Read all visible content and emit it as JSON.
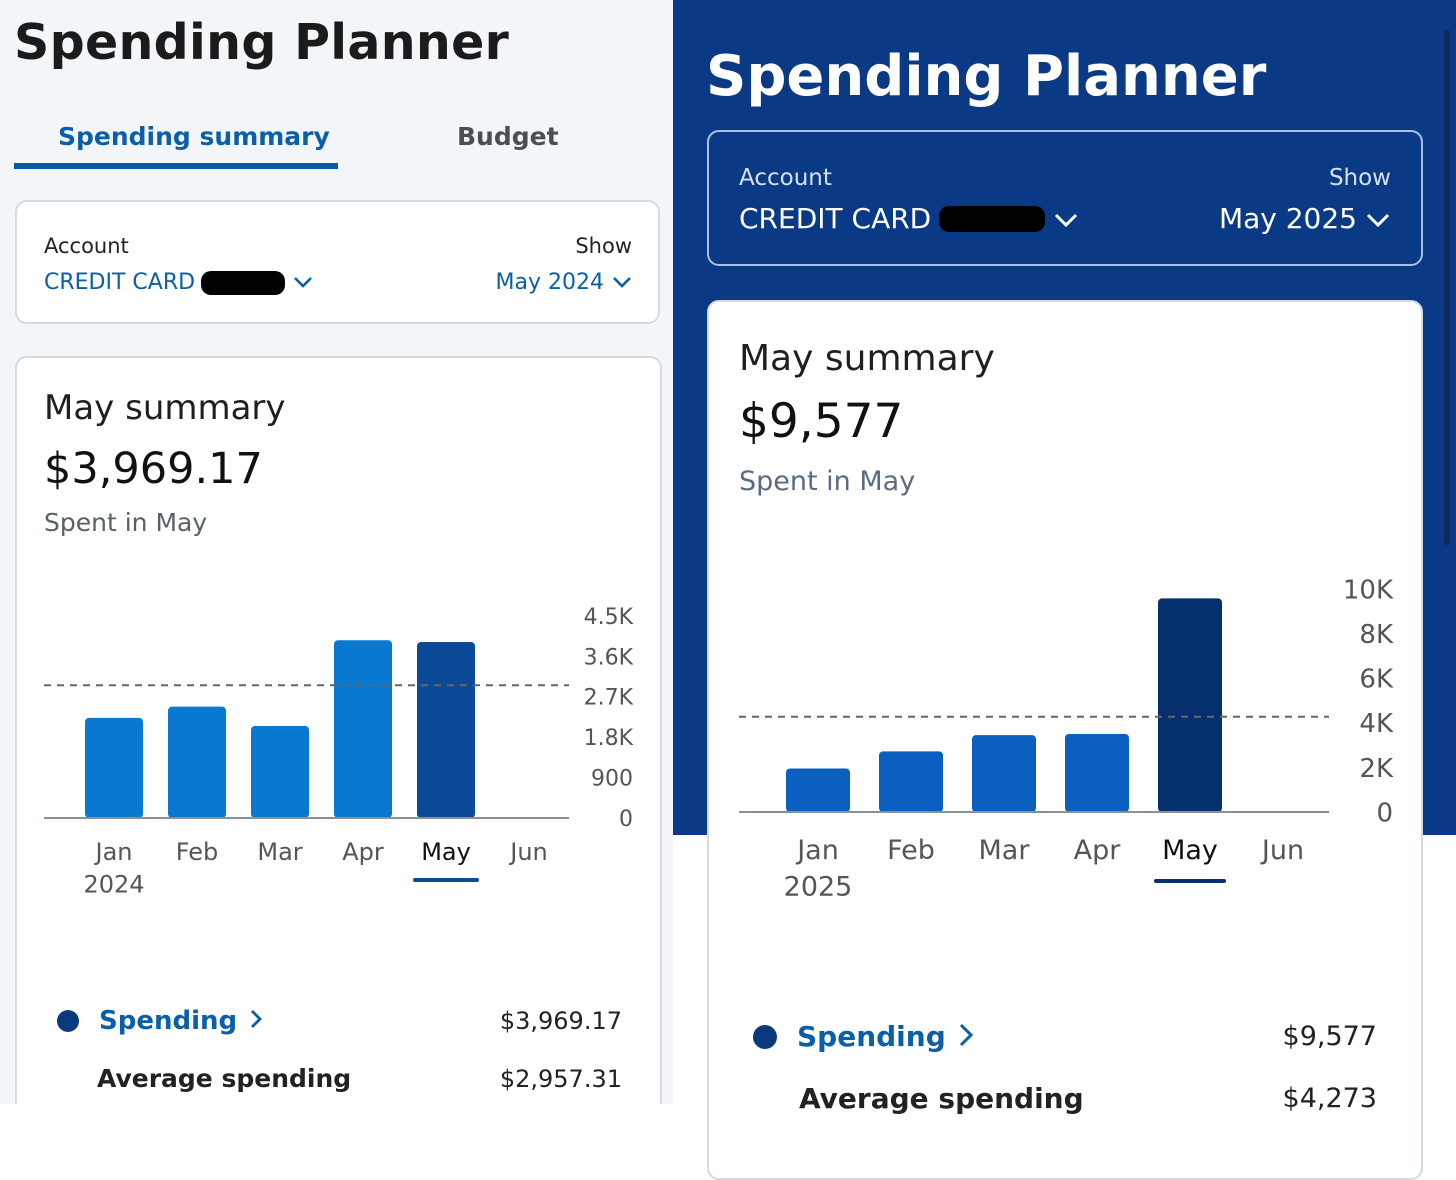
{
  "left": {
    "title": "Spending Planner",
    "tabs": [
      {
        "label": "Spending summary",
        "active": true
      },
      {
        "label": "Budget",
        "active": false
      }
    ],
    "account_label": "Account",
    "account_value": "CREDIT CARD",
    "show_label": "Show",
    "show_value": "May 2024",
    "summary_title": "May summary",
    "summary_amount": "$3,969.17",
    "summary_sub": "Spent in May",
    "legend": {
      "spending_label": "Spending",
      "spending_amount": "$3,969.17",
      "average_label": "Average spending",
      "average_amount": "$2,957.31"
    }
  },
  "right": {
    "title": "Spending Planner",
    "account_label": "Account",
    "account_value": "CREDIT CARD",
    "show_label": "Show",
    "show_value": "May 2025",
    "summary_title": "May summary",
    "summary_amount": "$9,577",
    "summary_sub": "Spent in May",
    "legend": {
      "spending_label": "Spending",
      "spending_amount": "$9,577",
      "average_label": "Average spending",
      "average_amount": "$4,273"
    }
  },
  "colors": {
    "bar": "#0878d0",
    "bar_selected": "#0b4a96",
    "bar_right": "#0a5fc0",
    "bar_right_selected": "#062f6e",
    "header_bg_right": "#0a3a86",
    "link": "#0a5fa8",
    "legend_dot": "#0a3a7e"
  },
  "icons": [
    "chevron-down-icon",
    "chevron-right-icon",
    "legend-dot-icon"
  ],
  "chart_data": [
    {
      "type": "bar",
      "categories": [
        "Jan",
        "Feb",
        "Mar",
        "Apr",
        "May",
        "Jun"
      ],
      "year_label": "2024",
      "values": [
        2230,
        2480,
        2050,
        3960,
        3920,
        0
      ],
      "average": 2957.31,
      "ylim": [
        0,
        4500
      ],
      "yticks": [
        "4.5K",
        "3.6K",
        "2.7K",
        "1.8K",
        "900",
        "0"
      ],
      "selected": "May"
    },
    {
      "type": "bar",
      "categories": [
        "Jan",
        "Feb",
        "Mar",
        "Apr",
        "May",
        "Jun"
      ],
      "year_label": "2025",
      "values": [
        1950,
        2720,
        3450,
        3500,
        9577,
        0
      ],
      "average": 4273,
      "ylim": [
        0,
        10000
      ],
      "yticks": [
        "10K",
        "8K",
        "6K",
        "4K",
        "2K",
        "0"
      ],
      "selected": "May"
    }
  ]
}
